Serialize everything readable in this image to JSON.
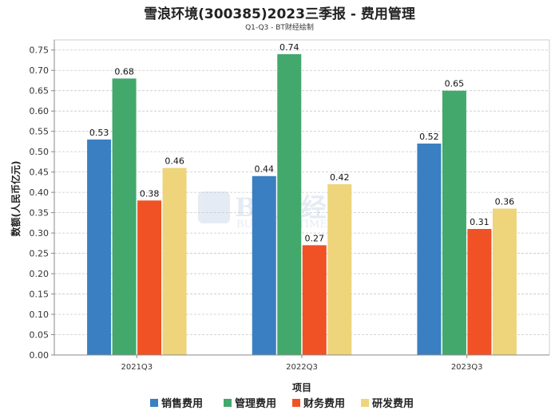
{
  "chart_data": {
    "type": "bar",
    "title": "雪浪环境(300385)2023三季报 - 费用管理",
    "subtitle": "Q1-Q3 - BT财经绘制",
    "xlabel": "项目",
    "ylabel": "数额(人民币亿元)",
    "categories": [
      "2021Q3",
      "2022Q3",
      "2023Q3"
    ],
    "series": [
      {
        "name": "销售费用",
        "color": "#3a7fc1",
        "values": [
          0.53,
          0.44,
          0.52
        ]
      },
      {
        "name": "管理费用",
        "color": "#43a86c",
        "values": [
          0.68,
          0.74,
          0.65
        ]
      },
      {
        "name": "财务费用",
        "color": "#f05125",
        "values": [
          0.38,
          0.27,
          0.31
        ]
      },
      {
        "name": "研发费用",
        "color": "#eed47a",
        "values": [
          0.46,
          0.42,
          0.36
        ]
      }
    ],
    "ylim": [
      0,
      0.775
    ],
    "yticks": [
      "0.00",
      "0.05",
      "0.10",
      "0.15",
      "0.20",
      "0.25",
      "0.30",
      "0.35",
      "0.40",
      "0.45",
      "0.50",
      "0.55",
      "0.60",
      "0.65",
      "0.70",
      "0.75"
    ],
    "grid": true,
    "legend_position": "bottom"
  },
  "watermark": {
    "main": "BT财经",
    "sub": "BUSINESS TIMES"
  }
}
